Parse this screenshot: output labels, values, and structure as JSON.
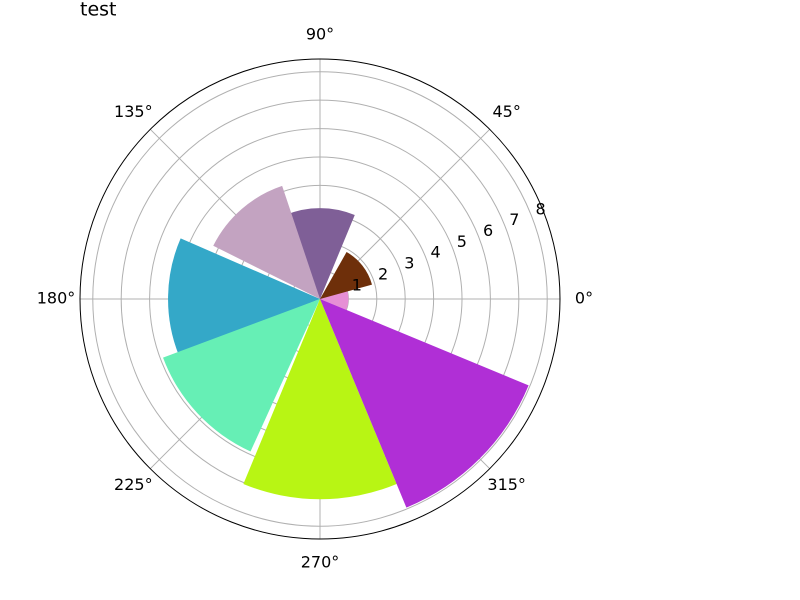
{
  "chart_data": {
    "type": "polar-bar",
    "title": "test",
    "theta": [
      0,
      38,
      90,
      131,
      179,
      223,
      270,
      315
    ],
    "width": 45,
    "values": [
      1.0,
      1.9,
      3.2,
      4.2,
      5.35,
      5.9,
      7.05,
      7.95
    ],
    "colors": [
      "#e68fd5",
      "#6e2f0a",
      "#7f5f97",
      "#c3a3c1",
      "#34a8c8",
      "#66efb5",
      "#b8f514",
      "#b02fd6"
    ],
    "ylim": [
      0,
      8.45
    ],
    "yticks": [
      1,
      2,
      3,
      4,
      5,
      6,
      7,
      8
    ],
    "xticks": [
      {
        "value": 0,
        "label": "0°"
      },
      {
        "value": 45,
        "label": "45°"
      },
      {
        "value": 90,
        "label": "90°"
      },
      {
        "value": 135,
        "label": "135°"
      },
      {
        "value": 180,
        "label": "180°"
      },
      {
        "value": 225,
        "label": "225°"
      },
      {
        "value": 270,
        "label": "270°"
      },
      {
        "value": 315,
        "label": "315°"
      }
    ],
    "grid": true
  }
}
